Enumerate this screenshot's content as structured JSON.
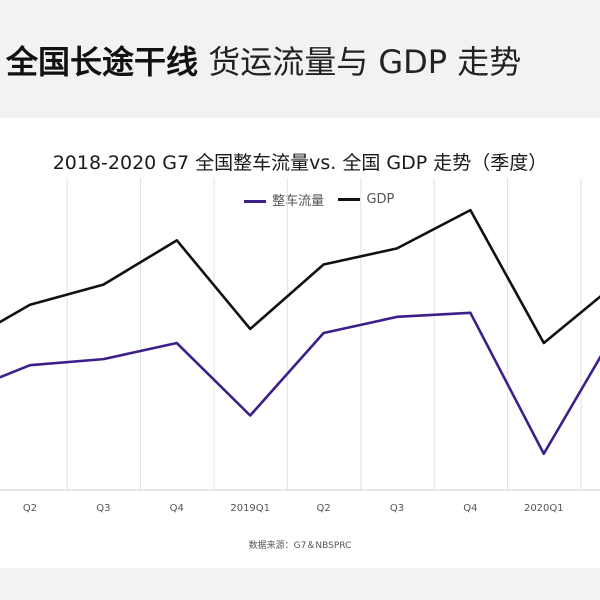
{
  "banner": {
    "title_bold": "全国长途干线",
    "title_light": " 货运流量与 GDP 走势"
  },
  "chart_data": {
    "type": "line",
    "title": "2018-2020 G7 全国整车流量vs. 全国 GDP 走势（季度）",
    "categories": [
      "Q2",
      "Q3",
      "Q4",
      "2019Q1",
      "Q2",
      "Q3",
      "Q4",
      "2020Q1"
    ],
    "series": [
      {
        "name": "整车流量",
        "color": "#3d1f8c",
        "values": [
          0.62,
          0.65,
          0.73,
          0.37,
          0.78,
          0.86,
          0.88,
          0.18
        ]
      },
      {
        "name": "GDP",
        "color": "#111111",
        "values": [
          0.92,
          1.02,
          1.24,
          0.8,
          1.12,
          1.2,
          1.39,
          0.73
        ]
      }
    ],
    "legend": "top-center",
    "grid": "vertical"
  },
  "source": "数据来源：G7＆NBSPRC"
}
